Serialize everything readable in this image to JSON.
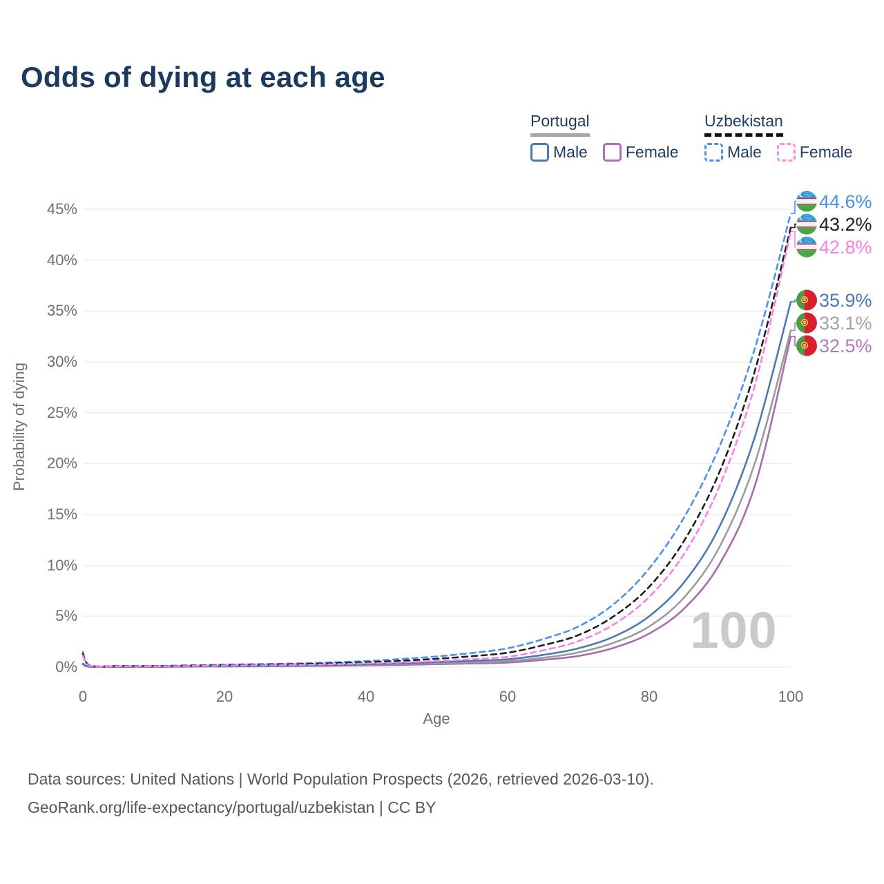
{
  "header": {
    "title": "Odds of dying at each age"
  },
  "legend": {
    "groups": [
      {
        "country": "Portugal",
        "line_style": "solid",
        "items": [
          {
            "label": "Male",
            "color": "#4a7ab5",
            "dashed": false
          },
          {
            "label": "Female",
            "color": "#b06fb2",
            "dashed": false
          }
        ]
      },
      {
        "country": "Uzbekistan",
        "line_style": "dashed",
        "items": [
          {
            "label": "Male",
            "color": "#4a90f2",
            "dashed": true
          },
          {
            "label": "Female",
            "color": "#ff8ae2",
            "dashed": true
          }
        ]
      }
    ]
  },
  "watermark": "100",
  "chart_data": {
    "type": "line",
    "title": "Odds of dying at each age",
    "xlabel": "Age",
    "ylabel": "Probability of dying",
    "xlim": [
      0,
      100
    ],
    "ylim": [
      0,
      45
    ],
    "xticks": [
      0,
      20,
      40,
      60,
      80,
      100
    ],
    "yticks": [
      0,
      5,
      10,
      15,
      20,
      25,
      30,
      35,
      40,
      45
    ],
    "ytick_labels": [
      "0%",
      "5%",
      "10%",
      "15%",
      "20%",
      "25%",
      "30%",
      "35%",
      "40%",
      "45%"
    ],
    "grid": true,
    "legend_position": "top-right",
    "x": [
      0,
      1,
      5,
      10,
      15,
      20,
      25,
      30,
      35,
      40,
      45,
      50,
      55,
      60,
      65,
      70,
      75,
      80,
      85,
      90,
      95,
      100
    ],
    "series": [
      {
        "name": "Portugal Female",
        "country": "Portugal",
        "flag": "pt",
        "color": "#aa6bad",
        "label_color": "#b578b5",
        "dashed": false,
        "end_label": "32.5%",
        "values": [
          0.27,
          0.04,
          0.03,
          0.03,
          0.05,
          0.07,
          0.08,
          0.1,
          0.13,
          0.17,
          0.22,
          0.29,
          0.36,
          0.44,
          0.72,
          1.1,
          1.9,
          3.3,
          5.8,
          10.2,
          18.0,
          32.5
        ]
      },
      {
        "name": "Portugal Both sexes",
        "country": "Portugal",
        "flag": "pt",
        "color": "#9b9b9b",
        "label_color": "#a3a3a3",
        "dashed": false,
        "end_label": "33.1%",
        "values": [
          0.3,
          0.04,
          0.03,
          0.04,
          0.06,
          0.08,
          0.1,
          0.12,
          0.16,
          0.22,
          0.3,
          0.39,
          0.48,
          0.6,
          0.92,
          1.45,
          2.4,
          4.0,
          6.9,
          11.9,
          20.2,
          33.1
        ]
      },
      {
        "name": "Portugal Male",
        "country": "Portugal",
        "flag": "pt",
        "color": "#4a7ab5",
        "label_color": "#4a7ab5",
        "dashed": false,
        "end_label": "35.9%",
        "values": [
          0.35,
          0.05,
          0.04,
          0.05,
          0.07,
          0.1,
          0.12,
          0.15,
          0.2,
          0.28,
          0.38,
          0.5,
          0.62,
          0.78,
          1.2,
          1.85,
          3.0,
          5.0,
          8.4,
          13.9,
          22.8,
          35.9
        ]
      },
      {
        "name": "Uzbekistan Male",
        "country": "Uzbekistan",
        "flag": "uz",
        "color": "#4a90f2",
        "label_color": "#4a90f2",
        "dashed": true,
        "end_label": "44.6%",
        "values": [
          1.5,
          0.17,
          0.12,
          0.12,
          0.17,
          0.25,
          0.3,
          0.36,
          0.46,
          0.6,
          0.8,
          1.05,
          1.4,
          1.85,
          2.75,
          4.0,
          6.2,
          9.7,
          14.8,
          21.8,
          31.5,
          44.6
        ]
      },
      {
        "name": "Uzbekistan Both sexes",
        "country": "Uzbekistan",
        "flag": "uz",
        "color": "#1c1c1c",
        "label_color": "#222222",
        "dashed": true,
        "end_label": "43.2%",
        "values": [
          1.3,
          0.14,
          0.1,
          0.1,
          0.14,
          0.2,
          0.24,
          0.29,
          0.37,
          0.48,
          0.63,
          0.82,
          1.08,
          1.42,
          2.15,
          3.15,
          5.0,
          7.9,
          12.5,
          19.3,
          29.3,
          43.2
        ]
      },
      {
        "name": "Uzbekistan Female",
        "country": "Uzbekistan",
        "flag": "uz",
        "color": "#ff7ee3",
        "label_color": "#ff7ee3",
        "dashed": true,
        "end_label": "42.8%",
        "values": [
          1.15,
          0.12,
          0.08,
          0.08,
          0.11,
          0.16,
          0.18,
          0.22,
          0.28,
          0.36,
          0.47,
          0.6,
          0.78,
          1.02,
          1.65,
          2.55,
          4.2,
          6.9,
          11.2,
          17.9,
          27.9,
          42.8
        ]
      }
    ]
  },
  "footer": {
    "line1": "Data sources: United Nations | World Population Prospects (2026, retrieved 2026-03-10).",
    "line2": "GeoRank.org/life-expectancy/portugal/uzbekistan | CC BY"
  }
}
